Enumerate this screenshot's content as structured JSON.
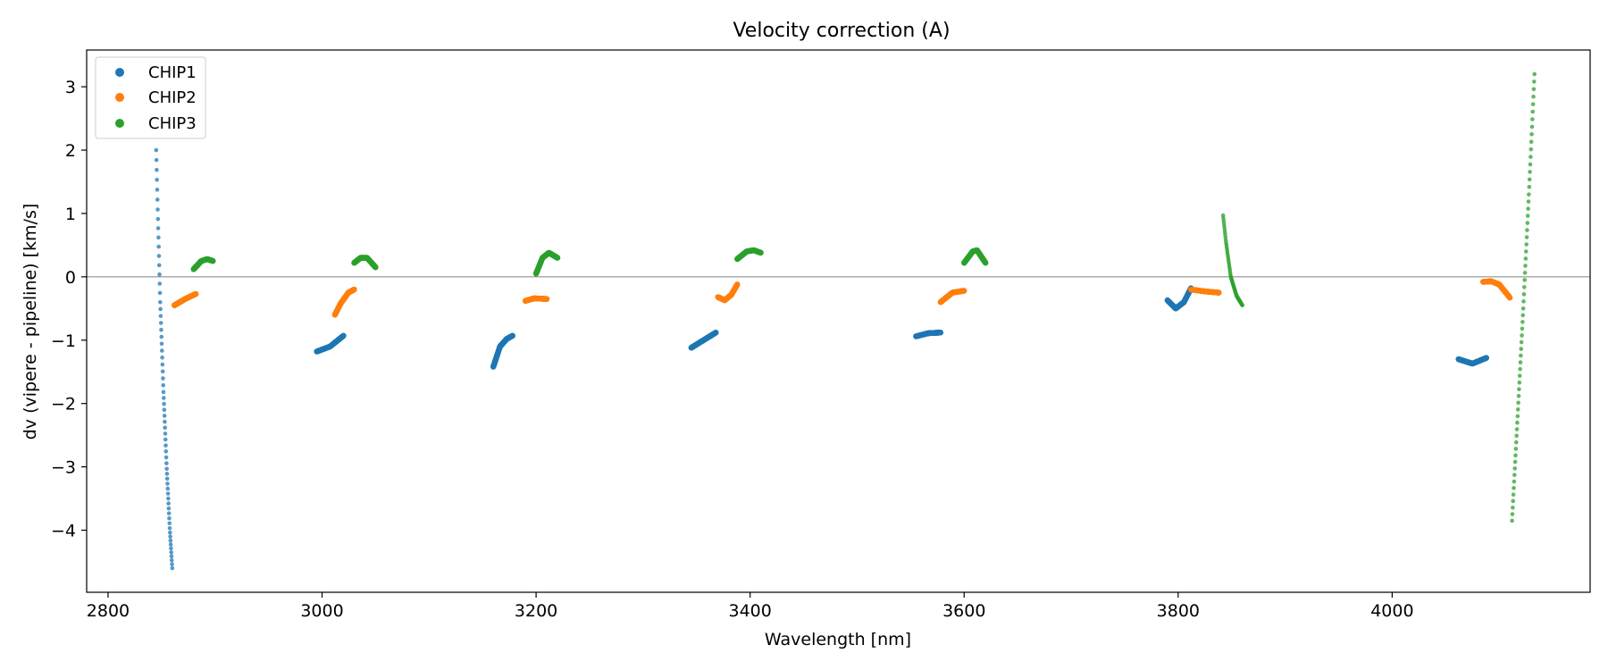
{
  "chart_data": {
    "type": "scatter",
    "title": "Velocity correction (A)",
    "xlabel": "Wavelength [nm]",
    "ylabel": "dv (vipere - pipeline) [km/s]",
    "xlim": [
      2780,
      4185
    ],
    "ylim": [
      -4.98,
      3.58
    ],
    "xticks": [
      2800,
      3000,
      3200,
      3400,
      3600,
      3800,
      4000
    ],
    "yticks": [
      -4,
      -3,
      -2,
      -1,
      0,
      1,
      2,
      3
    ],
    "reference_line": 0,
    "legend_position": "upper-left",
    "series": [
      {
        "name": "CHIP1",
        "color": "#1f77b4",
        "segments": [
          {
            "x0": 2845,
            "x1": 2860,
            "sparse": true,
            "points": [
              [
                0,
                2.0
              ],
              [
                0.1,
                1.0
              ],
              [
                0.25,
                -0.4
              ],
              [
                0.45,
                -1.8
              ],
              [
                0.65,
                -3.0
              ],
              [
                0.85,
                -4.0
              ],
              [
                1,
                -4.6
              ]
            ]
          },
          {
            "x0": 2995,
            "x1": 3020,
            "points": [
              [
                0,
                -1.18
              ],
              [
                0.5,
                -1.1
              ],
              [
                1,
                -0.93
              ]
            ]
          },
          {
            "x0": 3160,
            "x1": 3178,
            "points": [
              [
                0,
                -1.42
              ],
              [
                0.35,
                -1.1
              ],
              [
                0.7,
                -0.98
              ],
              [
                1,
                -0.93
              ]
            ]
          },
          {
            "x0": 3345,
            "x1": 3368,
            "points": [
              [
                0,
                -1.12
              ],
              [
                1,
                -0.88
              ]
            ]
          },
          {
            "x0": 3555,
            "x1": 3578,
            "points": [
              [
                0,
                -0.94
              ],
              [
                0.5,
                -0.89
              ],
              [
                1,
                -0.88
              ]
            ]
          },
          {
            "x0": 3790,
            "x1": 3812,
            "points": [
              [
                0,
                -0.37
              ],
              [
                0.35,
                -0.5
              ],
              [
                0.7,
                -0.4
              ],
              [
                1,
                -0.18
              ]
            ]
          },
          {
            "x0": 4062,
            "x1": 4088,
            "points": [
              [
                0,
                -1.3
              ],
              [
                0.5,
                -1.37
              ],
              [
                1,
                -1.28
              ]
            ]
          }
        ]
      },
      {
        "name": "CHIP2",
        "color": "#ff7f0e",
        "segments": [
          {
            "x0": 2862,
            "x1": 2882,
            "points": [
              [
                0,
                -0.45
              ],
              [
                0.5,
                -0.35
              ],
              [
                1,
                -0.27
              ]
            ]
          },
          {
            "x0": 3012,
            "x1": 3030,
            "points": [
              [
                0,
                -0.6
              ],
              [
                0.3,
                -0.42
              ],
              [
                0.7,
                -0.25
              ],
              [
                1,
                -0.2
              ]
            ]
          },
          {
            "x0": 3190,
            "x1": 3210,
            "points": [
              [
                0,
                -0.38
              ],
              [
                0.4,
                -0.34
              ],
              [
                1,
                -0.35
              ]
            ]
          },
          {
            "x0": 3370,
            "x1": 3388,
            "points": [
              [
                0,
                -0.32
              ],
              [
                0.35,
                -0.37
              ],
              [
                0.7,
                -0.28
              ],
              [
                1,
                -0.12
              ]
            ]
          },
          {
            "x0": 3578,
            "x1": 3600,
            "points": [
              [
                0,
                -0.4
              ],
              [
                0.5,
                -0.25
              ],
              [
                1,
                -0.22
              ]
            ]
          },
          {
            "x0": 3812,
            "x1": 3838,
            "points": [
              [
                0,
                -0.2
              ],
              [
                0.5,
                -0.23
              ],
              [
                1,
                -0.25
              ]
            ]
          },
          {
            "x0": 4085,
            "x1": 4110,
            "points": [
              [
                0,
                -0.08
              ],
              [
                0.3,
                -0.07
              ],
              [
                0.6,
                -0.12
              ],
              [
                1,
                -0.33
              ]
            ]
          }
        ]
      },
      {
        "name": "CHIP3",
        "color": "#2ca02c",
        "segments": [
          {
            "x0": 2880,
            "x1": 2898,
            "points": [
              [
                0,
                0.12
              ],
              [
                0.4,
                0.25
              ],
              [
                0.7,
                0.28
              ],
              [
                1,
                0.25
              ]
            ]
          },
          {
            "x0": 3030,
            "x1": 3050,
            "points": [
              [
                0,
                0.22
              ],
              [
                0.3,
                0.3
              ],
              [
                0.6,
                0.3
              ],
              [
                1,
                0.15
              ]
            ]
          },
          {
            "x0": 3200,
            "x1": 3220,
            "points": [
              [
                0,
                0.05
              ],
              [
                0.3,
                0.3
              ],
              [
                0.6,
                0.38
              ],
              [
                1,
                0.3
              ]
            ]
          },
          {
            "x0": 3388,
            "x1": 3410,
            "points": [
              [
                0,
                0.28
              ],
              [
                0.4,
                0.4
              ],
              [
                0.7,
                0.42
              ],
              [
                1,
                0.38
              ]
            ]
          },
          {
            "x0": 3600,
            "x1": 3620,
            "points": [
              [
                0,
                0.22
              ],
              [
                0.4,
                0.4
              ],
              [
                0.6,
                0.42
              ],
              [
                1,
                0.22
              ]
            ]
          },
          {
            "x0": 3842,
            "x1": 3860,
            "sparse": true,
            "points": [
              [
                0,
                0.97
              ],
              [
                0.15,
                0.55
              ],
              [
                0.4,
                0.0
              ],
              [
                0.7,
                -0.3
              ],
              [
                1,
                -0.45
              ]
            ]
          },
          {
            "x0": 4112,
            "x1": 4133,
            "sparse": true,
            "points": [
              [
                0,
                -3.85
              ],
              [
                0.25,
                -2.2
              ],
              [
                0.5,
                -0.5
              ],
              [
                0.75,
                1.3
              ],
              [
                1,
                3.2
              ]
            ]
          }
        ]
      }
    ]
  }
}
